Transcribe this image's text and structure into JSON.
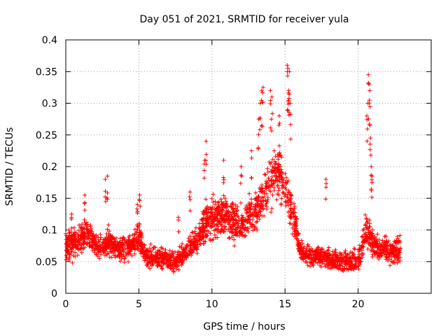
{
  "chart_data": {
    "type": "scatter",
    "title": "Day 051 of 2021, SRMTID for receiver yula",
    "xlabel": "GPS time / hours",
    "ylabel": "SRMTID / TECUs",
    "xlim": [
      0,
      25
    ],
    "ylim": [
      0,
      0.4
    ],
    "grid": true,
    "x_ticks": [
      0,
      5,
      10,
      15,
      20
    ],
    "y_ticks": [
      0,
      0.05,
      0.1,
      0.15,
      0.2,
      0.25,
      0.3,
      0.35,
      0.4
    ],
    "x_tick_labels": [
      "0",
      "5",
      "10",
      "15",
      "20"
    ],
    "y_tick_labels": [
      "0",
      "0.05",
      "0.1",
      "0.15",
      "0.2",
      "0.25",
      "0.3",
      "0.35",
      "0.4"
    ],
    "marker": "+",
    "color": "#ff0000",
    "x_max_data": 22.9,
    "envelope": [
      [
        0.0,
        0.07,
        0.03
      ],
      [
        0.5,
        0.08,
        0.03
      ],
      [
        1.0,
        0.085,
        0.03
      ],
      [
        1.5,
        0.1,
        0.03
      ],
      [
        2.0,
        0.075,
        0.025
      ],
      [
        2.5,
        0.075,
        0.02
      ],
      [
        3.0,
        0.08,
        0.03
      ],
      [
        3.5,
        0.07,
        0.02
      ],
      [
        4.0,
        0.07,
        0.025
      ],
      [
        4.5,
        0.075,
        0.02
      ],
      [
        5.0,
        0.09,
        0.03
      ],
      [
        5.5,
        0.06,
        0.02
      ],
      [
        6.0,
        0.055,
        0.02
      ],
      [
        6.5,
        0.055,
        0.02
      ],
      [
        7.0,
        0.055,
        0.02
      ],
      [
        7.5,
        0.05,
        0.02
      ],
      [
        8.0,
        0.06,
        0.02
      ],
      [
        8.5,
        0.075,
        0.02
      ],
      [
        9.0,
        0.085,
        0.025
      ],
      [
        9.5,
        0.11,
        0.035
      ],
      [
        10.0,
        0.12,
        0.04
      ],
      [
        10.5,
        0.12,
        0.04
      ],
      [
        11.0,
        0.12,
        0.035
      ],
      [
        11.5,
        0.11,
        0.035
      ],
      [
        12.0,
        0.11,
        0.035
      ],
      [
        12.5,
        0.12,
        0.04
      ],
      [
        13.0,
        0.13,
        0.04
      ],
      [
        13.5,
        0.15,
        0.04
      ],
      [
        14.0,
        0.18,
        0.045
      ],
      [
        14.5,
        0.19,
        0.05
      ],
      [
        15.0,
        0.17,
        0.045
      ],
      [
        15.5,
        0.13,
        0.04
      ],
      [
        16.0,
        0.07,
        0.02
      ],
      [
        16.5,
        0.06,
        0.02
      ],
      [
        17.0,
        0.06,
        0.02
      ],
      [
        17.5,
        0.06,
        0.02
      ],
      [
        18.0,
        0.055,
        0.02
      ],
      [
        18.5,
        0.05,
        0.02
      ],
      [
        19.0,
        0.05,
        0.02
      ],
      [
        19.5,
        0.05,
        0.02
      ],
      [
        20.0,
        0.05,
        0.02
      ],
      [
        20.5,
        0.1,
        0.04
      ],
      [
        21.0,
        0.08,
        0.03
      ],
      [
        21.5,
        0.07,
        0.02
      ],
      [
        22.0,
        0.07,
        0.025
      ],
      [
        22.5,
        0.065,
        0.025
      ],
      [
        22.9,
        0.07,
        0.025
      ]
    ],
    "spikes": [
      [
        0.2,
        0.1
      ],
      [
        0.4,
        0.125
      ],
      [
        1.3,
        0.155
      ],
      [
        2.7,
        0.18
      ],
      [
        2.85,
        0.185
      ],
      [
        4.9,
        0.14
      ],
      [
        5.05,
        0.155
      ],
      [
        7.7,
        0.12
      ],
      [
        8.5,
        0.16
      ],
      [
        9.5,
        0.21
      ],
      [
        9.6,
        0.24
      ],
      [
        10.8,
        0.21
      ],
      [
        12.0,
        0.2
      ],
      [
        12.7,
        0.225
      ],
      [
        13.2,
        0.275
      ],
      [
        13.3,
        0.3
      ],
      [
        13.4,
        0.32
      ],
      [
        13.5,
        0.325
      ],
      [
        14.0,
        0.32
      ],
      [
        14.1,
        0.31
      ],
      [
        14.6,
        0.28
      ],
      [
        15.15,
        0.36
      ],
      [
        15.2,
        0.355
      ],
      [
        15.3,
        0.35
      ],
      [
        15.25,
        0.32
      ],
      [
        15.35,
        0.3
      ],
      [
        17.8,
        0.18
      ],
      [
        20.6,
        0.28
      ],
      [
        20.7,
        0.345
      ],
      [
        20.75,
        0.33
      ],
      [
        20.8,
        0.32
      ],
      [
        20.85,
        0.245
      ],
      [
        20.9,
        0.2
      ],
      [
        20.95,
        0.185
      ]
    ],
    "points_per_hour": 115
  }
}
